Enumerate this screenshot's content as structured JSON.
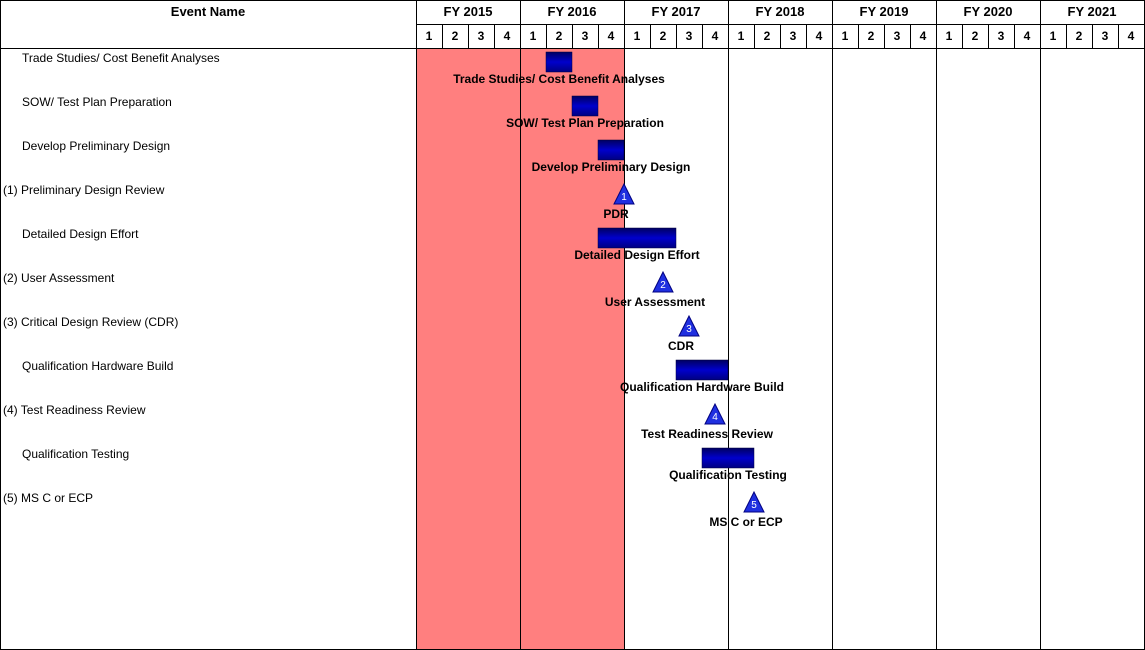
{
  "chart_data": {
    "type": "gantt",
    "header": {
      "event_column_title": "Event Name"
    },
    "fiscal_years": [
      "FY 2015",
      "FY 2016",
      "FY 2017",
      "FY 2018",
      "FY 2019",
      "FY 2020",
      "FY 2021"
    ],
    "quarters": [
      "1",
      "2",
      "3",
      "4"
    ],
    "axis_start": "FY 2015 Q1",
    "shaded_region": {
      "start": "FY 2015 Q1",
      "end": "FY 2016 Q4",
      "color": "#ff7f7f"
    },
    "colors": {
      "bar": "#0000cc",
      "milestone": "#1f2fe0",
      "grid": "#000000"
    },
    "events": [
      {
        "name": "Trade Studies/ Cost Benefit Analyses",
        "type": "task",
        "start": "FY 2016 Q2",
        "end": "FY 2016 Q2",
        "label": "Trade Studies/ Cost Benefit Analyses"
      },
      {
        "name": "SOW/ Test Plan Preparation",
        "type": "task",
        "start": "FY 2016 Q3",
        "end": "FY 2016 Q3",
        "label": "SOW/ Test Plan Preparation"
      },
      {
        "name": "Develop Preliminary Design",
        "type": "task",
        "start": "FY 2016 Q4",
        "end": "FY 2016 Q4",
        "label": "Develop Preliminary Design"
      },
      {
        "name": "(1) Preliminary Design Review",
        "type": "milestone",
        "number": "1",
        "at": "FY 2016 Q4 end",
        "label": "PDR"
      },
      {
        "name": "Detailed Design Effort",
        "type": "task",
        "start": "FY 2016 Q4",
        "end": "FY 2017 Q2",
        "label": "Detailed Design Effort"
      },
      {
        "name": "(2) User Assessment",
        "type": "milestone",
        "number": "2",
        "at": "FY 2017 Q2 mid",
        "label": "User Assessment"
      },
      {
        "name": "(3) Critical Design Review  (CDR)",
        "type": "milestone",
        "number": "3",
        "at": "FY 2017 Q3 mid",
        "label": "CDR"
      },
      {
        "name": "Qualification Hardware Build",
        "type": "task",
        "start": "FY 2017 Q3",
        "end": "FY 2017 Q4",
        "label": "Qualification Hardware Build"
      },
      {
        "name": "(4) Test Readiness Review",
        "type": "milestone",
        "number": "4",
        "at": "FY 2017 Q4 mid",
        "label": "Test Readiness Review"
      },
      {
        "name": "Qualification Testing",
        "type": "task",
        "start": "FY 2017 Q4",
        "end": "FY 2018 Q1",
        "label": "Qualification Testing"
      },
      {
        "name": "(5) MS C or ECP",
        "type": "milestone",
        "number": "5",
        "at": "FY 2018 Q2 start",
        "label": "MS C or ECP"
      }
    ]
  }
}
